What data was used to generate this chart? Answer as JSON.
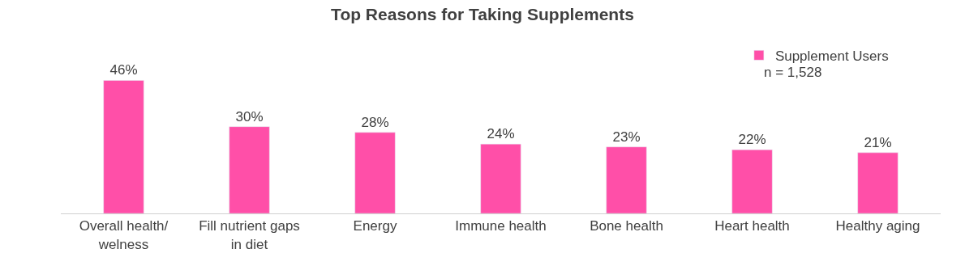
{
  "chart_data": {
    "type": "bar",
    "title": "Top Reasons for Taking Supplements",
    "categories": [
      "Overall health/ welness",
      "Fill nutrient gaps in diet",
      "Energy",
      "Immune health",
      "Bone health",
      "Heart health",
      "Healthy aging"
    ],
    "series": [
      {
        "name": "Supplement Users",
        "color": "#ff4fa8",
        "values": [
          46,
          30,
          28,
          24,
          23,
          22,
          21
        ],
        "value_labels": [
          "46%",
          "30%",
          "28%",
          "24%",
          "23%",
          "22%",
          "21%"
        ]
      }
    ],
    "annotations": [
      "n = 1,528"
    ],
    "legend": "top right"
  }
}
